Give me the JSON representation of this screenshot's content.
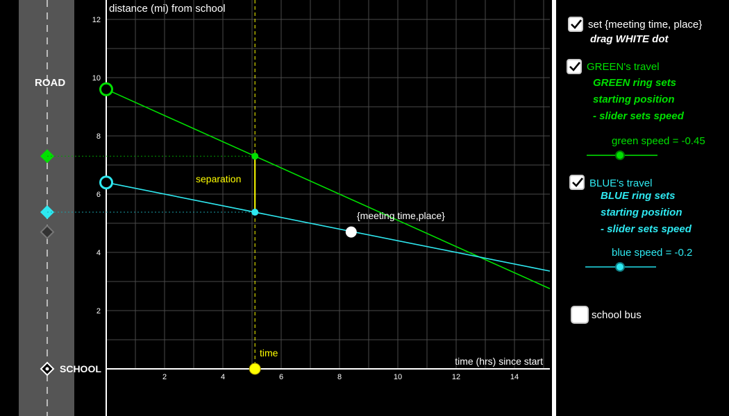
{
  "graph": {
    "y_axis_label": "distance (mi) from school",
    "x_axis_label": "time (hrs) since start",
    "road_label": "ROAD",
    "school_label": "SCHOOL",
    "separation_label": "separation",
    "time_label": "time",
    "meeting_label": "{meeting time,place}",
    "y_ticks": [
      "2",
      "4",
      "6",
      "8",
      "10",
      "12"
    ],
    "x_ticks": [
      "2",
      "4",
      "6",
      "8",
      "10",
      "12",
      "14"
    ]
  },
  "chart_data": {
    "type": "line",
    "xlabel": "time (hrs) since start",
    "ylabel": "distance (mi) from school",
    "xlim": [
      0,
      15
    ],
    "ylim": [
      0,
      12.5
    ],
    "grid": true,
    "series": [
      {
        "name": "GREEN",
        "color": "#00e000",
        "start": 9.6,
        "speed": -0.45
      },
      {
        "name": "BLUE",
        "color": "#2ee8f0",
        "start": 6.4,
        "speed": -0.2
      }
    ],
    "time": 5.1,
    "meeting_point": {
      "x": 8.4,
      "y": 4.7
    }
  },
  "panel": {
    "set_label": "set {meeting time, place}",
    "drag_note": "drag WHITE dot",
    "green_travel": "GREEN's travel",
    "green_lines": [
      "GREEN ring sets",
      "starting position",
      " - slider sets speed"
    ],
    "green_speed": "green speed = -0.45",
    "blue_travel": "BLUE's travel",
    "blue_lines": [
      "BLUE ring sets",
      "starting position",
      " - slider sets speed"
    ],
    "blue_speed": "blue speed = -0.2",
    "school_bus": "school bus",
    "set_checked": true,
    "green_checked": true,
    "blue_checked": true,
    "bus_checked": false,
    "green_slider_level": 0.47,
    "blue_slider_level": 0.49
  },
  "colors": {
    "green": "#00e000",
    "cyan": "#2ee8f0",
    "yellow": "#ffff00",
    "road": "#555555"
  }
}
